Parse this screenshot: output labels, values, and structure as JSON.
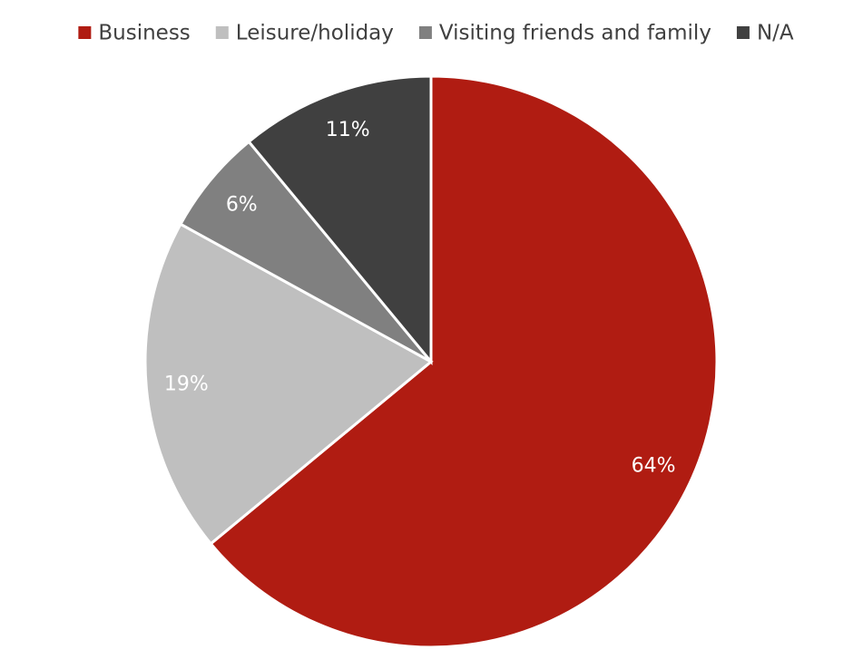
{
  "chart_data": {
    "type": "pie",
    "categories": [
      "Business",
      "Leisure/holiday",
      "Visiting friends and family",
      "N/A"
    ],
    "values": [
      64,
      19,
      6,
      11
    ],
    "value_labels": [
      "64%",
      "19%",
      "6%",
      "11%"
    ],
    "colors": [
      "#b01c12",
      "#bfbfbf",
      "#808080",
      "#404040"
    ],
    "legend": "top"
  }
}
